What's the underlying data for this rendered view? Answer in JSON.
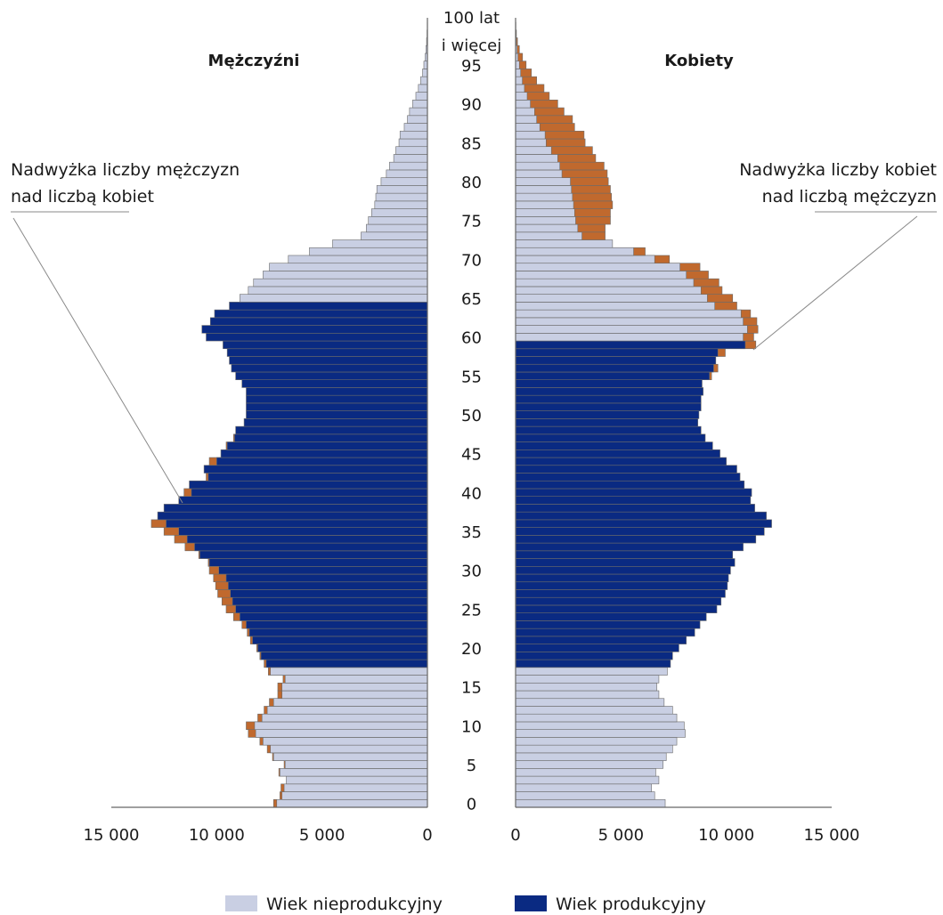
{
  "colors": {
    "nonproductive": "#c9cfe3",
    "productive": "#0a2a82",
    "excess": "#c0692e",
    "barEdge": "#6b6b6b",
    "axis": "#666666",
    "leader": "#8a8a8a"
  },
  "chart_data": {
    "type": "bar",
    "orientation": "horizontal-population-pyramid",
    "age_label_top": [
      "100 lat",
      "i więcej"
    ],
    "age_tick_labels": [
      "0",
      "5",
      "10",
      "15",
      "20",
      "25",
      "30",
      "35",
      "40",
      "45",
      "50",
      "55",
      "60",
      "65",
      "70",
      "75",
      "80",
      "85",
      "90",
      "95"
    ],
    "age_ticks": [
      0,
      5,
      10,
      15,
      20,
      25,
      30,
      35,
      40,
      45,
      50,
      55,
      60,
      65,
      70,
      75,
      80,
      85,
      90,
      95
    ],
    "xlim": [
      0,
      15000
    ],
    "x_tick_values": [
      15000,
      10000,
      5000,
      0
    ],
    "x_tick_labels_left": [
      "15 000",
      "10 000",
      "5 000",
      "0"
    ],
    "x_tick_labels_right": [
      "0",
      "5 000",
      "10 000",
      "15 000"
    ],
    "productive_age_men": [
      18,
      64
    ],
    "productive_age_women": [
      18,
      59
    ],
    "men_title": "Mężczyźni",
    "women_title": "Kobiety",
    "annotation_men": [
      "Nadwyżka liczby mężczyzn",
      "nad liczbą kobiet"
    ],
    "annotation_women": [
      "Nadwyżka liczby kobiet",
      "nad liczbą mężczyzn"
    ],
    "legend": [
      {
        "name": "Wiek nieprodukcyjny",
        "color": "#c9cfe3"
      },
      {
        "name": "Wiek produkcyjny",
        "color": "#0a2a82"
      }
    ],
    "ages": [
      0,
      1,
      2,
      3,
      4,
      5,
      6,
      7,
      8,
      9,
      10,
      11,
      12,
      13,
      14,
      15,
      16,
      17,
      18,
      19,
      20,
      21,
      22,
      23,
      24,
      25,
      26,
      27,
      28,
      29,
      30,
      31,
      32,
      33,
      34,
      35,
      36,
      37,
      38,
      39,
      40,
      41,
      42,
      43,
      44,
      45,
      46,
      47,
      48,
      49,
      50,
      51,
      52,
      53,
      54,
      55,
      56,
      57,
      58,
      59,
      60,
      61,
      62,
      63,
      64,
      65,
      66,
      67,
      68,
      69,
      70,
      71,
      72,
      73,
      74,
      75,
      76,
      77,
      78,
      79,
      80,
      81,
      82,
      83,
      84,
      85,
      86,
      87,
      88,
      89,
      90,
      91,
      92,
      93,
      94,
      95,
      96,
      97,
      98,
      99,
      100
    ],
    "men": [
      7150,
      6900,
      6800,
      6700,
      7000,
      6750,
      7300,
      7450,
      7800,
      8150,
      8200,
      7850,
      7600,
      7300,
      6900,
      6900,
      6750,
      7450,
      7650,
      7900,
      8050,
      8300,
      8450,
      8600,
      8900,
      9100,
      9250,
      9350,
      9450,
      9550,
      9900,
      10350,
      10800,
      11050,
      11400,
      11800,
      12400,
      12800,
      12500,
      11800,
      11200,
      11300,
      10400,
      10600,
      10000,
      9800,
      9500,
      9150,
      9100,
      8700,
      8600,
      8600,
      8600,
      8600,
      8800,
      9100,
      9300,
      9400,
      9500,
      9700,
      10500,
      10700,
      10300,
      10100,
      9400,
      8900,
      8500,
      8250,
      7800,
      7500,
      6600,
      5600,
      4500,
      3150,
      2900,
      2800,
      2650,
      2500,
      2450,
      2400,
      2200,
      1950,
      1800,
      1600,
      1500,
      1350,
      1300,
      1100,
      950,
      850,
      700,
      550,
      430,
      320,
      230,
      170,
      110,
      70,
      40,
      20,
      10
    ],
    "women": [
      7100,
      6600,
      6450,
      6800,
      6650,
      7000,
      7150,
      7450,
      7650,
      8050,
      8000,
      7650,
      7450,
      7050,
      6800,
      6700,
      6800,
      7200,
      7350,
      7450,
      7750,
      8100,
      8500,
      8750,
      9050,
      9550,
      9750,
      9950,
      10050,
      10100,
      10200,
      10400,
      10300,
      10800,
      11400,
      11800,
      12150,
      11900,
      11350,
      11150,
      11200,
      10850,
      10650,
      10500,
      10000,
      9700,
      9350,
      9000,
      8800,
      8650,
      8700,
      8800,
      8800,
      8900,
      8850,
      9200,
      9400,
      9500,
      9600,
      10900,
      10800,
      11000,
      10800,
      10700,
      9450,
      9100,
      8800,
      8450,
      8100,
      7800,
      6600,
      5600,
      4600,
      3150,
      2950,
      2850,
      2800,
      2750,
      2700,
      2650,
      2600,
      2200,
      2100,
      2000,
      1700,
      1450,
      1400,
      1150,
      1000,
      900,
      700,
      550,
      420,
      320,
      240,
      180,
      110,
      70,
      40,
      20,
      10
    ],
    "excess_men": [
      7300,
      7000,
      6950,
      6700,
      7050,
      6800,
      7350,
      7600,
      7950,
      8500,
      8600,
      8050,
      7750,
      7500,
      7100,
      7100,
      6850,
      7550,
      7750,
      7950,
      8100,
      8400,
      8550,
      8800,
      9200,
      9550,
      9750,
      9950,
      10050,
      10150,
      10350,
      10400,
      10850,
      11500,
      12000,
      12500,
      13100,
      12600,
      12050,
      11350,
      11550,
      11200,
      10500,
      10600,
      10350,
      9800,
      9550,
      9200,
      9100,
      8700,
      8600,
      8600,
      8600,
      8600,
      8800,
      9100,
      9300,
      9400,
      9500,
      9700,
      10500,
      10700,
      10300,
      10100,
      9400,
      8900,
      8500,
      8250,
      7800,
      7500,
      6600,
      5600,
      4500,
      3150,
      2900,
      2800,
      2650,
      2500,
      2450,
      2400,
      2200,
      1950,
      1800,
      1600,
      1500,
      1350,
      1300,
      1100,
      950,
      850,
      700,
      550,
      430,
      320,
      230,
      170,
      110,
      70,
      40,
      20,
      10
    ],
    "excess_women": [
      7100,
      6600,
      6450,
      6800,
      6650,
      7000,
      7150,
      7450,
      7650,
      8050,
      8000,
      7650,
      7450,
      7050,
      6800,
      6700,
      6800,
      7200,
      7350,
      7450,
      7750,
      8100,
      8500,
      8750,
      9050,
      9550,
      9750,
      9950,
      10050,
      10100,
      10200,
      10400,
      10300,
      10800,
      11400,
      11800,
      12150,
      11900,
      11350,
      11150,
      11200,
      10850,
      10650,
      10500,
      10000,
      9700,
      9350,
      9000,
      8800,
      8650,
      8700,
      8800,
      8800,
      8900,
      8850,
      9300,
      9600,
      9500,
      9950,
      11400,
      11300,
      11500,
      11450,
      11150,
      10500,
      10300,
      9800,
      9650,
      9150,
      8750,
      7300,
      6150,
      4200,
      4250,
      4250,
      4500,
      4500,
      4600,
      4550,
      4500,
      4400,
      4350,
      4200,
      3800,
      3650,
      3300,
      3250,
      2800,
      2700,
      2300,
      2000,
      1600,
      1350,
      1000,
      750,
      500,
      330,
      180,
      90,
      40,
      15
    ]
  }
}
